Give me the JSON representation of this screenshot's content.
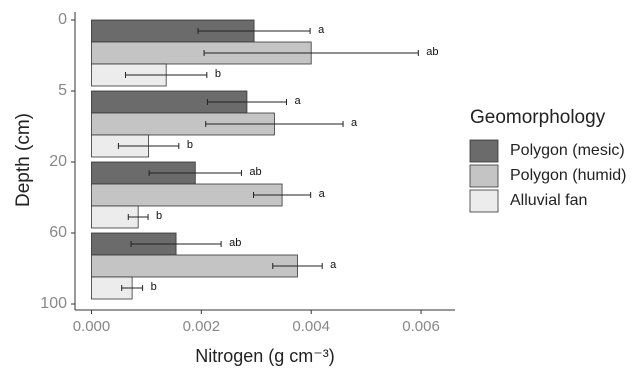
{
  "chart_data": {
    "type": "bar",
    "orientation": "horizontal",
    "x_label": "Nitrogen (g cm⁻³)",
    "y_label": "Depth (cm)",
    "categories": [
      null,
      null,
      null,
      null
    ],
    "y_boundary_labels": [
      0,
      5,
      20,
      60,
      100
    ],
    "xlim": [
      -0.0003,
      0.0068
    ],
    "xticks": [
      {
        "value": 0,
        "label": "0.000"
      },
      {
        "value": 0.002,
        "label": "0.002"
      },
      {
        "value": 0.004,
        "label": "0.004"
      },
      {
        "value": 0.006,
        "label": "0.006"
      }
    ],
    "legend_title": "Geomorphology",
    "legend_position": "right",
    "series": [
      {
        "name": "Polygon (mesic)",
        "color": "#6b6b6b",
        "values": [
          0.00296,
          0.00283,
          0.00189,
          0.00154
        ],
        "errors": [
          0.00102,
          0.00072,
          0.00084,
          0.00082
        ],
        "letters": [
          "a",
          "a",
          "ab",
          "ab"
        ]
      },
      {
        "name": "Polygon (humid)",
        "color": "#c4c4c4",
        "values": [
          0.004,
          0.00333,
          0.00347,
          0.00375
        ],
        "errors": [
          0.00195,
          0.00125,
          0.00052,
          0.00045
        ],
        "letters": [
          "ab",
          "a",
          "a",
          "a"
        ]
      },
      {
        "name": "Alluvial fan",
        "color": "#ececec",
        "values": [
          0.00136,
          0.00104,
          0.00085,
          0.00074
        ],
        "errors": [
          0.00074,
          0.00055,
          0.00018,
          0.00019
        ],
        "letters": [
          "b",
          "b",
          "b",
          "b"
        ]
      }
    ]
  }
}
